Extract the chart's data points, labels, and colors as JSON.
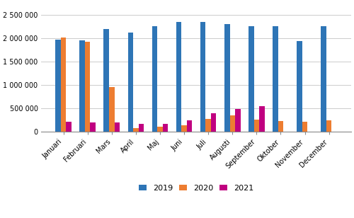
{
  "months": [
    "Januari",
    "Februari",
    "Mars",
    "April",
    "Maj",
    "Juni",
    "Juli",
    "Augusti",
    "September",
    "Oktober",
    "November",
    "December"
  ],
  "values_2019": [
    1960000,
    1950000,
    2190000,
    2110000,
    2250000,
    2350000,
    2340000,
    2300000,
    2260000,
    2250000,
    1930000,
    2260000
  ],
  "values_2020": [
    2010000,
    1920000,
    960000,
    80000,
    100000,
    140000,
    280000,
    350000,
    260000,
    230000,
    210000,
    240000
  ],
  "values_2021": [
    215000,
    200000,
    195000,
    160000,
    165000,
    250000,
    390000,
    480000,
    540000,
    0,
    0,
    0
  ],
  "color_2019": "#2e75b6",
  "color_2020": "#ed7d31",
  "color_2021": "#c00080",
  "legend_labels": [
    "2019",
    "2020",
    "2021"
  ],
  "ylim": [
    0,
    2750000
  ],
  "yticks": [
    0,
    500000,
    1000000,
    1500000,
    2000000,
    2500000
  ],
  "background_color": "#ffffff",
  "grid_color": "#cccccc"
}
